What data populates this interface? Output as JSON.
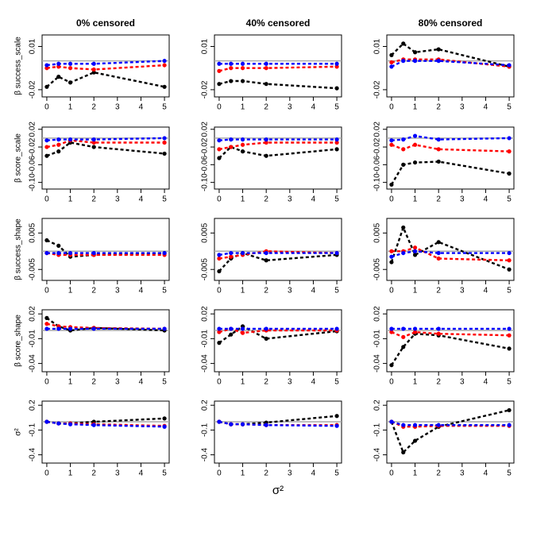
{
  "chart_data": [
    {
      "type": "line",
      "title": "0% censored",
      "ylabel": "β success_scale",
      "x": [
        0,
        0.5,
        1,
        2,
        5
      ],
      "xlim": [
        -0.2,
        5.2
      ],
      "xticks": [
        0,
        1,
        2,
        3,
        4,
        5
      ],
      "ylim": [
        -0.025,
        0.018
      ],
      "yticks": [
        -0.02,
        0.01
      ],
      "hline": 0,
      "series": [
        {
          "color": "#000000",
          "values": [
            -0.018,
            -0.011,
            -0.015,
            -0.008,
            -0.018
          ]
        },
        {
          "color": "#ff0000",
          "values": [
            -0.005,
            -0.004,
            -0.005,
            -0.006,
            -0.003
          ]
        },
        {
          "color": "#0000ff",
          "values": [
            -0.003,
            -0.002,
            -0.002,
            -0.002,
            0.0
          ]
        }
      ]
    },
    {
      "type": "line",
      "title": "40% censored",
      "x": [
        0,
        0.5,
        1,
        2,
        5
      ],
      "xlim": [
        -0.2,
        5.2
      ],
      "xticks": [
        0,
        1,
        2,
        3,
        4,
        5
      ],
      "ylim": [
        -0.025,
        0.018
      ],
      "yticks": [
        -0.02,
        0.01
      ],
      "hline": 0,
      "series": [
        {
          "color": "#000000",
          "values": [
            -0.016,
            -0.014,
            -0.014,
            -0.016,
            -0.019
          ]
        },
        {
          "color": "#ff0000",
          "values": [
            -0.007,
            -0.005,
            -0.005,
            -0.005,
            -0.004
          ]
        },
        {
          "color": "#0000ff",
          "values": [
            -0.002,
            -0.002,
            -0.002,
            -0.002,
            -0.002
          ]
        }
      ]
    },
    {
      "type": "line",
      "title": "80% censored",
      "x": [
        0,
        0.5,
        1,
        2,
        5
      ],
      "xlim": [
        -0.2,
        5.2
      ],
      "xticks": [
        0,
        1,
        2,
        3,
        4,
        5
      ],
      "ylim": [
        -0.025,
        0.018
      ],
      "yticks": [
        -0.02,
        0.01
      ],
      "hline": 0,
      "series": [
        {
          "color": "#000000",
          "values": [
            0.004,
            0.012,
            0.006,
            0.008,
            -0.004
          ]
        },
        {
          "color": "#ff0000",
          "values": [
            -0.001,
            0.001,
            0.001,
            0.001,
            -0.004
          ]
        },
        {
          "color": "#0000ff",
          "values": [
            -0.004,
            0.0,
            0.0,
            0.0,
            -0.003
          ]
        }
      ]
    },
    {
      "type": "line",
      "ylabel": "β score_scale",
      "x": [
        0,
        0.5,
        1,
        2,
        5
      ],
      "xlim": [
        -0.2,
        5.2
      ],
      "xticks": [
        0,
        1,
        2,
        3,
        4,
        5
      ],
      "ylim": [
        -0.115,
        0.025
      ],
      "yticks": [
        {
          "value": -0.1,
          "label": "-0.10"
        },
        -0.06,
        -0.02,
        0.02
      ],
      "hline": 0,
      "series": [
        {
          "color": "#000000",
          "values": [
            -0.04,
            -0.03,
            -0.01,
            -0.02,
            -0.035
          ]
        },
        {
          "color": "#ff0000",
          "values": [
            -0.02,
            -0.015,
            -0.005,
            -0.01,
            -0.01
          ]
        },
        {
          "color": "#0000ff",
          "values": [
            -0.005,
            -0.003,
            -0.003,
            -0.003,
            0.0
          ]
        }
      ]
    },
    {
      "type": "line",
      "x": [
        0,
        0.5,
        1,
        2,
        5
      ],
      "xlim": [
        -0.2,
        5.2
      ],
      "xticks": [
        0,
        1,
        2,
        3,
        4,
        5
      ],
      "ylim": [
        -0.115,
        0.025
      ],
      "yticks": [
        {
          "value": -0.1,
          "label": "-0.10"
        },
        -0.06,
        -0.02,
        0.02
      ],
      "hline": 0,
      "series": [
        {
          "color": "#000000",
          "values": [
            -0.045,
            -0.02,
            -0.03,
            -0.04,
            -0.025
          ]
        },
        {
          "color": "#ff0000",
          "values": [
            -0.025,
            -0.02,
            -0.015,
            -0.01,
            -0.01
          ]
        },
        {
          "color": "#0000ff",
          "values": [
            -0.005,
            -0.003,
            -0.003,
            -0.003,
            -0.003
          ]
        }
      ]
    },
    {
      "type": "line",
      "x": [
        0,
        0.5,
        1,
        2,
        5
      ],
      "xlim": [
        -0.2,
        5.2
      ],
      "xticks": [
        0,
        1,
        2,
        3,
        4,
        5
      ],
      "ylim": [
        -0.115,
        0.025
      ],
      "yticks": [
        {
          "value": -0.1,
          "label": "-0.10"
        },
        -0.06,
        -0.02,
        0.02
      ],
      "hline": 0,
      "series": [
        {
          "color": "#000000",
          "values": [
            -0.105,
            -0.06,
            -0.055,
            -0.053,
            -0.08
          ]
        },
        {
          "color": "#ff0000",
          "values": [
            -0.015,
            -0.025,
            -0.015,
            -0.025,
            -0.03
          ]
        },
        {
          "color": "#0000ff",
          "values": [
            -0.005,
            -0.003,
            0.005,
            -0.003,
            0.0
          ]
        }
      ]
    },
    {
      "type": "line",
      "ylabel": "β success_shape",
      "x": [
        0,
        0.5,
        1,
        2,
        5
      ],
      "xlim": [
        -0.2,
        5.2
      ],
      "xticks": [
        0,
        1,
        2,
        3,
        4,
        5
      ],
      "ylim": [
        -0.008,
        0.009
      ],
      "yticks": [
        -0.005,
        0.005
      ],
      "hline": 0,
      "series": [
        {
          "color": "#000000",
          "values": [
            0.003,
            0.0015,
            -0.0015,
            -0.001,
            -0.0005
          ]
        },
        {
          "color": "#ff0000",
          "values": [
            -0.0005,
            -0.001,
            -0.001,
            -0.001,
            -0.001
          ]
        },
        {
          "color": "#0000ff",
          "values": [
            -0.0005,
            -0.0005,
            -0.0005,
            -0.0005,
            -0.0005
          ]
        }
      ]
    },
    {
      "type": "line",
      "x": [
        0,
        0.5,
        1,
        2,
        5
      ],
      "xlim": [
        -0.2,
        5.2
      ],
      "xticks": [
        0,
        1,
        2,
        3,
        4,
        5
      ],
      "ylim": [
        -0.008,
        0.009
      ],
      "yticks": [
        -0.005,
        0.005
      ],
      "hline": 0,
      "series": [
        {
          "color": "#000000",
          "values": [
            -0.0055,
            -0.002,
            -0.0005,
            -0.0025,
            -0.001
          ]
        },
        {
          "color": "#ff0000",
          "values": [
            -0.002,
            -0.0015,
            -0.001,
            0.0,
            -0.0005
          ]
        },
        {
          "color": "#0000ff",
          "values": [
            -0.001,
            -0.0005,
            -0.0005,
            -0.0005,
            -0.0005
          ]
        }
      ]
    },
    {
      "type": "line",
      "x": [
        0,
        0.5,
        1,
        2,
        5
      ],
      "xlim": [
        -0.2,
        5.2
      ],
      "xticks": [
        0,
        1,
        2,
        3,
        4,
        5
      ],
      "ylim": [
        -0.008,
        0.009
      ],
      "yticks": [
        -0.005,
        0.005
      ],
      "hline": 0,
      "series": [
        {
          "color": "#000000",
          "values": [
            -0.003,
            0.0065,
            -0.001,
            0.0025,
            -0.005
          ]
        },
        {
          "color": "#ff0000",
          "values": [
            0.0,
            0.0,
            0.001,
            -0.002,
            -0.0025
          ]
        },
        {
          "color": "#0000ff",
          "values": [
            -0.0015,
            -0.0005,
            0.0,
            -0.0005,
            -0.0005
          ]
        }
      ]
    },
    {
      "type": "line",
      "ylabel": "β score_shape",
      "x": [
        0,
        0.5,
        1,
        2,
        5
      ],
      "xlim": [
        -0.2,
        5.2
      ],
      "xticks": [
        0,
        1,
        2,
        3,
        4,
        5
      ],
      "ylim": [
        -0.05,
        0.025
      ],
      "yticks": [
        -0.04,
        -0.01,
        0.02
      ],
      "hline": 0,
      "series": [
        {
          "color": "#000000",
          "values": [
            0.015,
            0.005,
            0.0,
            0.003,
            0.0
          ]
        },
        {
          "color": "#ff0000",
          "values": [
            0.008,
            0.005,
            0.004,
            0.003,
            0.002
          ]
        },
        {
          "color": "#0000ff",
          "values": [
            0.002,
            0.002,
            0.002,
            0.002,
            0.002
          ]
        }
      ]
    },
    {
      "type": "line",
      "x": [
        0,
        0.5,
        1,
        2,
        5
      ],
      "xlim": [
        -0.2,
        5.2
      ],
      "xticks": [
        0,
        1,
        2,
        3,
        4,
        5
      ],
      "ylim": [
        -0.05,
        0.025
      ],
      "yticks": [
        -0.04,
        -0.01,
        0.02
      ],
      "hline": 0,
      "series": [
        {
          "color": "#000000",
          "values": [
            -0.015,
            -0.005,
            0.005,
            -0.01,
            -0.001
          ]
        },
        {
          "color": "#ff0000",
          "values": [
            -0.002,
            0.002,
            -0.003,
            0.0,
            0.0
          ]
        },
        {
          "color": "#0000ff",
          "values": [
            0.002,
            0.002,
            0.002,
            0.002,
            0.002
          ]
        }
      ]
    },
    {
      "type": "line",
      "x": [
        0,
        0.5,
        1,
        2,
        5
      ],
      "xlim": [
        -0.2,
        5.2
      ],
      "xticks": [
        0,
        1,
        2,
        3,
        4,
        5
      ],
      "ylim": [
        -0.05,
        0.025
      ],
      "yticks": [
        -0.04,
        -0.01,
        0.02
      ],
      "hline": 0,
      "series": [
        {
          "color": "#000000",
          "values": [
            -0.042,
            -0.02,
            -0.004,
            -0.006,
            -0.022
          ]
        },
        {
          "color": "#ff0000",
          "values": [
            -0.002,
            -0.008,
            -0.002,
            -0.004,
            -0.006
          ]
        },
        {
          "color": "#0000ff",
          "values": [
            0.002,
            0.002,
            0.002,
            0.002,
            0.002
          ]
        }
      ]
    },
    {
      "type": "line",
      "ylabel": "σ²",
      "x": [
        0,
        0.5,
        1,
        2,
        5
      ],
      "xlim": [
        -0.2,
        5.2
      ],
      "xticks": [
        0,
        1,
        2,
        3,
        4,
        5
      ],
      "ylim": [
        -0.5,
        0.25
      ],
      "yticks": [
        -0.4,
        -0.1,
        0.2
      ],
      "hline": 0,
      "series": [
        {
          "color": "#000000",
          "values": [
            0.0,
            -0.02,
            -0.02,
            0.0,
            0.04
          ]
        },
        {
          "color": "#ff0000",
          "values": [
            0.0,
            -0.02,
            -0.02,
            -0.03,
            -0.05
          ]
        },
        {
          "color": "#0000ff",
          "values": [
            0.0,
            -0.02,
            -0.03,
            -0.04,
            -0.06
          ]
        }
      ]
    },
    {
      "type": "line",
      "xlabel": "σ²",
      "x": [
        0,
        0.5,
        1,
        2,
        5
      ],
      "xlim": [
        -0.2,
        5.2
      ],
      "xticks": [
        0,
        1,
        2,
        3,
        4,
        5
      ],
      "ylim": [
        -0.5,
        0.25
      ],
      "yticks": [
        -0.4,
        -0.1,
        0.2
      ],
      "hline": 0,
      "series": [
        {
          "color": "#000000",
          "values": [
            0.0,
            -0.03,
            -0.03,
            -0.01,
            0.07
          ]
        },
        {
          "color": "#ff0000",
          "values": [
            0.0,
            -0.03,
            -0.03,
            -0.04,
            -0.04
          ]
        },
        {
          "color": "#0000ff",
          "values": [
            0.0,
            -0.03,
            -0.03,
            -0.04,
            -0.05
          ]
        }
      ]
    },
    {
      "type": "line",
      "x": [
        0,
        0.5,
        1,
        2,
        5
      ],
      "xlim": [
        -0.2,
        5.2
      ],
      "xticks": [
        0,
        1,
        2,
        3,
        4,
        5
      ],
      "ylim": [
        -0.5,
        0.25
      ],
      "yticks": [
        -0.4,
        -0.1,
        0.2
      ],
      "hline": 0,
      "series": [
        {
          "color": "#000000",
          "values": [
            0.0,
            -0.37,
            -0.23,
            -0.06,
            0.14
          ]
        },
        {
          "color": "#ff0000",
          "values": [
            0.0,
            -0.06,
            -0.06,
            -0.05,
            -0.05
          ]
        },
        {
          "color": "#0000ff",
          "values": [
            0.0,
            -0.04,
            -0.04,
            -0.04,
            -0.04
          ]
        }
      ]
    }
  ]
}
